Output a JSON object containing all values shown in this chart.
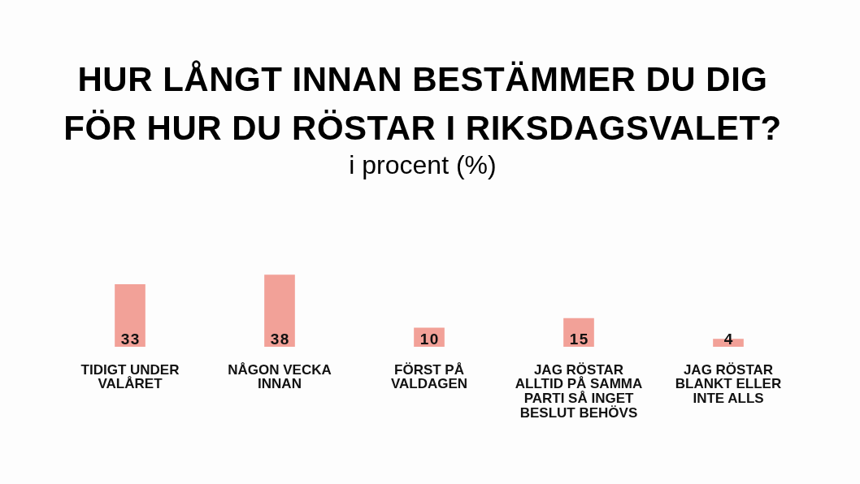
{
  "chart_data": {
    "type": "bar",
    "title": "HUR LÅNGT INNAN BESTÄMMER DU DIG FÖR HUR DU RÖSTAR I RIKSDAGSVALET?",
    "subtitle": "i procent (%)",
    "categories": [
      "TIDIGT UNDER VALÅRET",
      "NÅGON VECKA INNAN",
      "FÖRST PÅ VALDAGEN",
      "JAG RÖSTAR ALLTID PÅ SAMMA PARTI SÅ INGET BESLUT BEHÖVS",
      "JAG RÖSTAR BLANKT ELLER INTE ALLS"
    ],
    "values": [
      33,
      38,
      10,
      15,
      4
    ],
    "color": "#f2a198",
    "data_labels": true,
    "grid": false,
    "legend": false,
    "tick_labels": "x"
  }
}
